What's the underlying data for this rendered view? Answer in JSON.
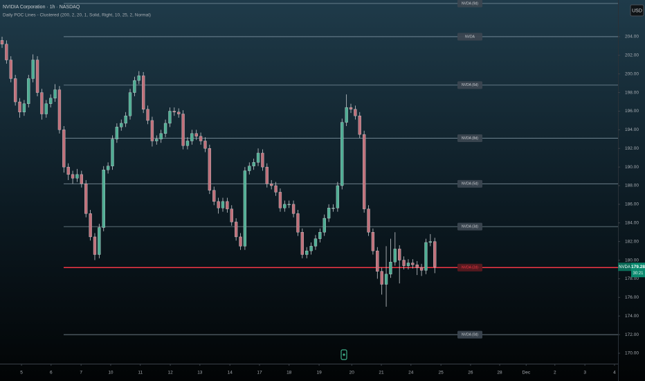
{
  "chart_data": {
    "type": "candlestick",
    "title": "NVIDIA Corporation · 1h · NASDAQ",
    "subtitle": "Daily POC Lines - Clustered (200, 2, 20, 1, Solid, Right, 10, 25, 2, Normal)",
    "currency": "USD",
    "symbol": "NVDA",
    "last_price": 179.28,
    "countdown": "30:21",
    "up_color": "#4fae94",
    "down_color": "#c0707a",
    "wick_color": "#c8ccd0",
    "open": [
      203.6,
      203.2,
      201.5,
      199.5,
      197,
      195.9,
      196.8,
      199.5,
      201.5,
      198,
      195.7,
      196.8,
      197.4,
      198.3,
      194,
      190,
      189.2,
      188.8,
      189.2,
      188.2,
      185,
      182.5,
      180.6,
      183.5,
      189.7,
      190.1,
      193,
      194.3,
      194.7,
      195.5,
      198,
      199.3,
      199.8,
      196.2,
      195,
      192.8,
      193,
      193.6,
      194.7,
      196,
      195.9,
      195.7,
      192.3,
      192.8,
      193.6,
      193.3,
      192.8,
      192,
      187.5,
      186.3,
      185.6,
      186.3,
      185.5,
      184.1,
      182.5,
      181.5,
      189.6,
      190.1,
      190.5,
      191.5,
      190,
      188.2,
      188,
      187.3,
      185.6,
      186,
      186,
      185,
      183,
      180.6,
      181,
      181.5,
      182.3,
      183,
      184.5,
      185.6,
      185.6,
      188,
      194.8,
      196.4,
      196.2,
      195.5,
      193.5,
      185.5,
      183,
      181,
      178.8,
      177.4,
      178.5,
      179.8,
      181.2,
      180,
      179.4,
      179.7,
      179.5,
      179.2,
      178.9,
      181.9,
      182
    ],
    "high": [
      204.0,
      203.6,
      201.9,
      199.9,
      197.4,
      197.2,
      199.9,
      202.1,
      201.9,
      198.4,
      197.2,
      197.8,
      198.9,
      198.7,
      194.4,
      190.4,
      189.6,
      189.8,
      189.6,
      188.6,
      185.4,
      182.9,
      183.9,
      190.1,
      190.5,
      193.4,
      194.7,
      195.1,
      195.9,
      198.4,
      199.7,
      200.3,
      200.2,
      196.6,
      195.4,
      193.4,
      194.0,
      195.1,
      196.4,
      196.4,
      196.3,
      196.1,
      193.2,
      194.0,
      194.0,
      193.7,
      193.2,
      192.4,
      187.9,
      186.7,
      186.7,
      186.7,
      185.9,
      184.5,
      182.9,
      190.0,
      190.5,
      190.9,
      192.0,
      191.9,
      190.4,
      188.6,
      188.4,
      187.7,
      186.4,
      186.4,
      186.4,
      185.4,
      183.4,
      181.4,
      181.9,
      182.7,
      183.4,
      184.9,
      186.0,
      186.0,
      188.4,
      195.2,
      197.8,
      196.8,
      196.6,
      195.9,
      193.9,
      185.9,
      183.4,
      181.4,
      179.2,
      181.5,
      182.3,
      183.0,
      181.6,
      180.4,
      180.1,
      180.1,
      179.9,
      179.6,
      182.3,
      182.8,
      182.4
    ],
    "low": [
      202.8,
      201.1,
      199.1,
      196.6,
      195.3,
      195.5,
      196.4,
      199.1,
      197.6,
      195.1,
      195.3,
      196.4,
      197.0,
      193.6,
      189.4,
      188.6,
      188.2,
      188.4,
      187.8,
      184.6,
      182.1,
      180.0,
      180.2,
      183.1,
      189.3,
      189.7,
      192.6,
      193.9,
      194.3,
      195.1,
      197.6,
      198.9,
      195.8,
      194.6,
      192.2,
      192.4,
      192.6,
      193.2,
      194.3,
      195.5,
      195.3,
      191.9,
      191.9,
      192.4,
      192.9,
      192.4,
      191.6,
      187.1,
      185.9,
      185.0,
      185.2,
      185.1,
      183.7,
      182.1,
      181.1,
      181.1,
      189.2,
      189.7,
      190.1,
      189.6,
      187.8,
      187.6,
      186.9,
      185.2,
      185.2,
      185.6,
      184.6,
      182.6,
      180.2,
      180.2,
      180.6,
      181.1,
      181.9,
      182.6,
      184.1,
      185.2,
      185.2,
      187.6,
      194.4,
      195.8,
      195.1,
      193.1,
      185.1,
      182.6,
      180.6,
      178.0,
      176.3,
      175.0,
      178.1,
      179.4,
      177.5,
      179.0,
      179.0,
      179.1,
      178.4,
      178.3,
      178.5,
      181.5,
      178.6
    ],
    "close": [
      203.2,
      201.5,
      199.5,
      197,
      195.9,
      196.8,
      199.5,
      201.5,
      198,
      195.7,
      196.8,
      197.4,
      198.3,
      194,
      190,
      189.2,
      188.8,
      189.2,
      188.2,
      185,
      182.5,
      180.6,
      183.5,
      189.7,
      190.1,
      193,
      194.3,
      194.7,
      195.5,
      198,
      199.3,
      199.8,
      196.2,
      195,
      192.8,
      193,
      193.6,
      194.7,
      196,
      195.9,
      195.7,
      192.3,
      192.8,
      193.6,
      193.3,
      192.8,
      192,
      187.5,
      186.3,
      185.6,
      186.3,
      185.5,
      184.1,
      182.5,
      181.5,
      189.6,
      190.1,
      190.5,
      191.5,
      190,
      188.2,
      188,
      187.3,
      185.6,
      186,
      186,
      185,
      183,
      180.6,
      181,
      181.5,
      182.3,
      183,
      184.5,
      185.6,
      185.6,
      188,
      194.8,
      196.4,
      196.2,
      195.5,
      193.5,
      185.5,
      183,
      181,
      178.8,
      177.4,
      178.5,
      179.8,
      181.2,
      180,
      179.4,
      179.7,
      179.5,
      179.2,
      178.9,
      181.9,
      182,
      179.28
    ],
    "xlim": [
      -0.47,
      139.5
    ],
    "xticks": [
      {
        "value": 4.4,
        "label": "5"
      },
      {
        "value": 11.1,
        "label": "6"
      },
      {
        "value": 17.9,
        "label": "7"
      },
      {
        "value": 24.6,
        "label": "10"
      },
      {
        "value": 31.3,
        "label": "11"
      },
      {
        "value": 38.1,
        "label": "12"
      },
      {
        "value": 44.8,
        "label": "13"
      },
      {
        "value": 51.6,
        "label": "14"
      },
      {
        "value": 58.3,
        "label": "17"
      },
      {
        "value": 65.0,
        "label": "18"
      },
      {
        "value": 71.8,
        "label": "19"
      },
      {
        "value": 79.2,
        "label": "20"
      },
      {
        "value": 85.9,
        "label": "21"
      },
      {
        "value": 92.6,
        "label": "24"
      },
      {
        "value": 99.4,
        "label": "25"
      },
      {
        "value": 106.1,
        "label": "26"
      },
      {
        "value": 112.7,
        "label": "28"
      },
      {
        "value": 118.7,
        "label": "Dec"
      },
      {
        "value": 125.2,
        "label": "2"
      },
      {
        "value": 132.0,
        "label": "3"
      },
      {
        "value": 138.7,
        "label": "4"
      }
    ],
    "ylim": [
      168.88,
      207.94
    ],
    "yticks": [
      {
        "value": 170,
        "label": "170.00"
      },
      {
        "value": 172,
        "label": "172.00"
      },
      {
        "value": 174,
        "label": "174.00"
      },
      {
        "value": 176,
        "label": "176.00"
      },
      {
        "value": 178,
        "label": "178.00"
      },
      {
        "value": 180,
        "label": "180.00"
      },
      {
        "value": 182,
        "label": "182.00"
      },
      {
        "value": 184,
        "label": "184.00"
      },
      {
        "value": 186,
        "label": "186.00"
      },
      {
        "value": 188,
        "label": "188.00"
      },
      {
        "value": 190,
        "label": "190.00"
      },
      {
        "value": 192,
        "label": "192.00"
      },
      {
        "value": 194,
        "label": "194.00"
      },
      {
        "value": 196,
        "label": "196.00"
      },
      {
        "value": 198,
        "label": "198.00"
      },
      {
        "value": 200,
        "label": "200.00"
      },
      {
        "value": 202,
        "label": "202.00"
      },
      {
        "value": 204,
        "label": "204.00"
      }
    ],
    "poc_lines": [
      {
        "price": 207.57,
        "label": "NVDA (9d)",
        "color": "#9fb3bf"
      },
      {
        "price": 204.0,
        "label": "NVDA",
        "color": "#9fb3bf"
      },
      {
        "price": 198.8,
        "label": "NVDA (6d)",
        "color": "#9fb3bf"
      },
      {
        "price": 193.1,
        "label": "NVDA (8d)",
        "color": "#9fb3bf"
      },
      {
        "price": 188.2,
        "label": "NVDA (5d)",
        "color": "#9fb3bf"
      },
      {
        "price": 183.6,
        "label": "NVDA (3d)",
        "color": "#9fb3bf"
      },
      {
        "price": 179.2,
        "label": "NVDA (2d)",
        "color": "#f23645"
      },
      {
        "price": 172.0,
        "label": "NVDA (0d)",
        "color": "#9fb3bf"
      }
    ]
  }
}
